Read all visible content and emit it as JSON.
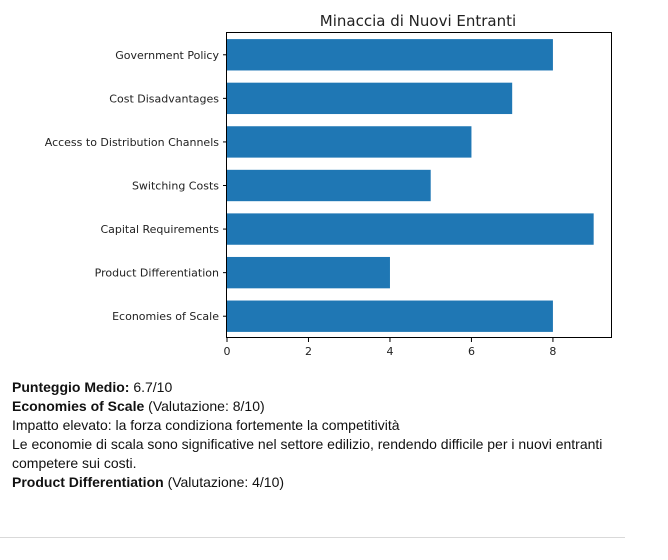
{
  "chart_data": {
    "type": "bar",
    "orientation": "horizontal",
    "title": "Minaccia di Nuovi Entranti",
    "xlabel": "",
    "ylabel": "",
    "categories": [
      "Government Policy",
      "Cost Disadvantages",
      "Access to Distribution Channels",
      "Switching Costs",
      "Capital Requirements",
      "Product Differentiation",
      "Economies of Scale"
    ],
    "values": [
      8,
      7,
      6,
      5,
      9,
      4,
      8
    ],
    "xlim": [
      0,
      9.45
    ],
    "xticks": [
      0,
      2,
      4,
      6,
      8
    ],
    "grid": false,
    "bar_color": "#1f77b4"
  },
  "report": {
    "average_label": "Punteggio Medio:",
    "average_value": "6.7/10",
    "sections": [
      {
        "name": "Economies of Scale",
        "rating": "(Valutazione: 8/10)",
        "impact": "Impatto elevato: la forza condiziona fortemente la competitività",
        "description": "Le economie di scala sono significative nel settore edilizio, rendendo difficile per i nuovi entranti competere sui costi."
      },
      {
        "name": "Product Differentiation",
        "rating": "(Valutazione: 4/10)"
      }
    ]
  }
}
